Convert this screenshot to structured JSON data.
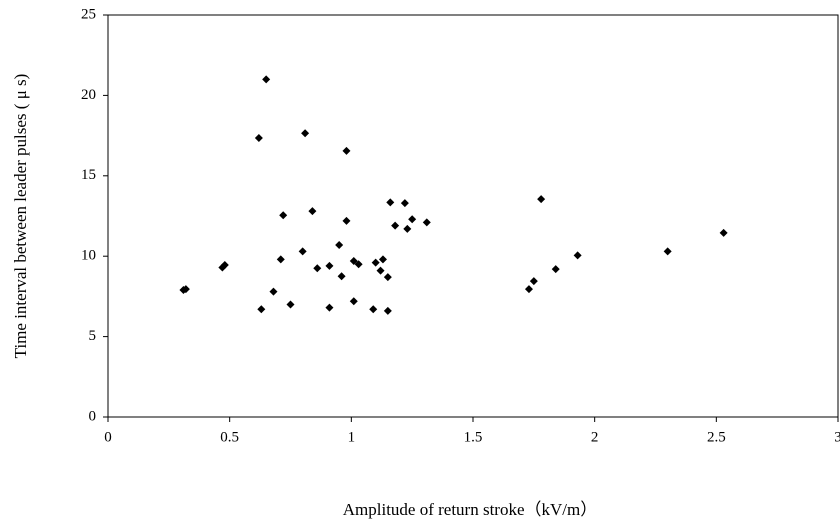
{
  "chart_data": {
    "type": "scatter",
    "x_label": "Amplitude of return stroke（kV/m）",
    "y_label": "Time interval between leader pulses ( μ s)",
    "x": [
      0.31,
      0.32,
      0.47,
      0.48,
      0.62,
      0.65,
      0.81,
      0.98,
      0.63,
      0.68,
      0.71,
      0.72,
      0.75,
      0.8,
      0.84,
      0.86,
      0.91,
      0.91,
      0.95,
      0.96,
      0.98,
      1.01,
      1.01,
      1.03,
      1.09,
      1.1,
      1.12,
      1.13,
      1.15,
      1.15,
      1.16,
      1.18,
      1.22,
      1.23,
      1.25,
      1.31,
      1.73,
      1.75,
      1.78,
      1.84,
      1.93,
      2.3,
      2.53
    ],
    "series": [
      {
        "color": "#000000",
        "values": [
          7.9,
          7.95,
          9.3,
          9.45,
          17.35,
          21.0,
          17.65,
          16.55,
          6.7,
          7.8,
          9.8,
          12.55,
          7.0,
          10.3,
          12.8,
          9.25,
          6.8,
          9.4,
          10.7,
          8.75,
          12.2,
          7.2,
          9.7,
          9.5,
          6.7,
          9.6,
          9.1,
          9.8,
          8.7,
          6.6,
          13.35,
          11.9,
          13.3,
          11.7,
          12.3,
          12.1,
          7.95,
          8.45,
          13.55,
          9.2,
          10.05,
          10.3,
          11.45
        ]
      }
    ],
    "xlim": [
      0,
      3
    ],
    "xticks": [
      0,
      0.5,
      1,
      1.5,
      2,
      2.5,
      3
    ],
    "ylim": [
      0,
      25
    ],
    "yticks": [
      0,
      5,
      10,
      15,
      20,
      25
    ],
    "grid": false
  }
}
